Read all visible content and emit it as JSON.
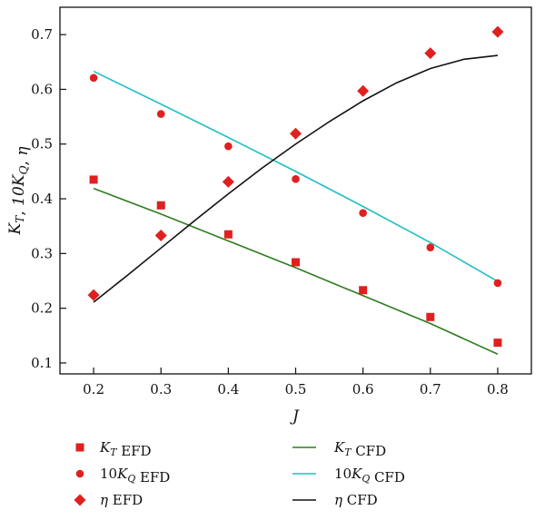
{
  "chart_data": {
    "type": "scatter",
    "xlabel": "J",
    "ylabel": "K_T, 10K_Q, η",
    "xlim": [
      0.15,
      0.85
    ],
    "ylim": [
      0.08,
      0.75
    ],
    "x_ticks": [
      "0.2",
      "0.3",
      "0.4",
      "0.5",
      "0.6",
      "0.7",
      "0.8"
    ],
    "x_tick_values": [
      0.2,
      0.3,
      0.4,
      0.5,
      0.6,
      0.7,
      0.8
    ],
    "y_ticks": [
      "0.1",
      "0.2",
      "0.3",
      "0.4",
      "0.5",
      "0.6",
      "0.7"
    ],
    "y_tick_values": [
      0.1,
      0.2,
      0.3,
      0.4,
      0.5,
      0.6,
      0.7
    ],
    "grid": false,
    "legend_position": "bottom",
    "series": [
      {
        "name": "K_T EFD",
        "kind": "scatter",
        "marker": "square",
        "color": "#e02020",
        "x": [
          0.2,
          0.3,
          0.4,
          0.5,
          0.6,
          0.7,
          0.8
        ],
        "values": [
          0.435,
          0.388,
          0.335,
          0.284,
          0.233,
          0.184,
          0.137
        ]
      },
      {
        "name": "10K_Q EFD",
        "kind": "scatter",
        "marker": "circle",
        "color": "#e02020",
        "x": [
          0.2,
          0.3,
          0.4,
          0.5,
          0.6,
          0.7,
          0.8
        ],
        "values": [
          0.621,
          0.555,
          0.496,
          0.436,
          0.374,
          0.311,
          0.246
        ]
      },
      {
        "name": "η EFD",
        "kind": "scatter",
        "marker": "diamond",
        "color": "#e02020",
        "x": [
          0.2,
          0.3,
          0.4,
          0.5,
          0.6,
          0.7,
          0.8
        ],
        "values": [
          0.224,
          0.333,
          0.431,
          0.519,
          0.597,
          0.666,
          0.705
        ]
      },
      {
        "name": "K_T CFD",
        "kind": "line",
        "color": "#2e7d1f",
        "x": [
          0.2,
          0.3,
          0.4,
          0.5,
          0.6,
          0.7,
          0.8
        ],
        "values": [
          0.419,
          0.372,
          0.323,
          0.274,
          0.223,
          0.172,
          0.116
        ]
      },
      {
        "name": "10K_Q CFD",
        "kind": "line",
        "color": "#1fbfc4",
        "x": [
          0.2,
          0.3,
          0.4,
          0.5,
          0.6,
          0.7,
          0.8
        ],
        "values": [
          0.633,
          0.573,
          0.512,
          0.45,
          0.386,
          0.32,
          0.249
        ]
      },
      {
        "name": "η CFD",
        "kind": "line",
        "color": "#111111",
        "x": [
          0.2,
          0.25,
          0.3,
          0.35,
          0.4,
          0.45,
          0.5,
          0.55,
          0.6,
          0.65,
          0.7,
          0.75,
          0.8
        ],
        "values": [
          0.211,
          0.26,
          0.31,
          0.36,
          0.409,
          0.456,
          0.5,
          0.541,
          0.579,
          0.612,
          0.638,
          0.655,
          0.662
        ]
      }
    ]
  }
}
